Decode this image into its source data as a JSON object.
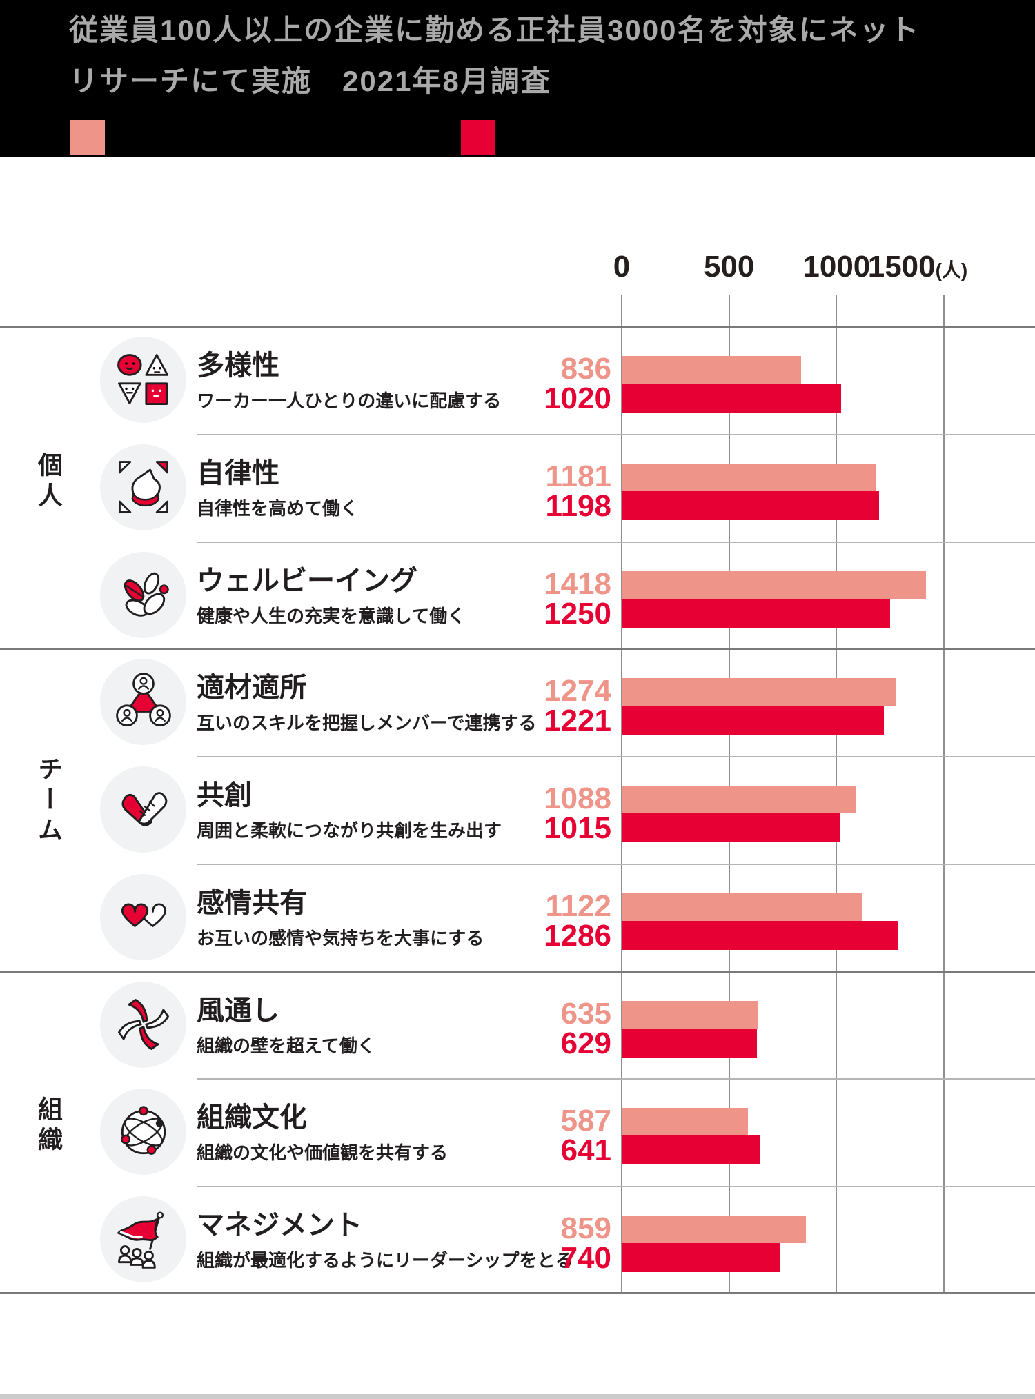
{
  "header": {
    "title_line1": "従業員100人以上の企業に勤める正社員3000名を対象にネット",
    "title_line2": "リサーチにて実施　2021年8月調査",
    "legend": {
      "swatches": [
        {
          "name": "series-a-swatch",
          "color": "#EF9489"
        },
        {
          "name": "series-b-swatch",
          "color": "#E60033"
        }
      ]
    }
  },
  "chart_data": {
    "type": "bar",
    "orientation": "horizontal",
    "unit": "人",
    "axis": {
      "ticks": [
        0,
        500,
        1000,
        1500
      ],
      "tick_suffix": "(人)",
      "xlim": [
        0,
        1500
      ],
      "grid": true
    },
    "series_colors": {
      "series_a": "#EF9489",
      "series_b": "#E60033"
    },
    "groups": [
      {
        "label": "個人",
        "rows": [
          {
            "icon": "diversity-icon",
            "title": "多様性",
            "subtitle": "ワーカー一人ひとりの違いに配慮する",
            "values": [
              836,
              1020
            ]
          },
          {
            "icon": "autonomy-icon",
            "title": "自律性",
            "subtitle": "自律性を高めて働く",
            "values": [
              1181,
              1198
            ]
          },
          {
            "icon": "wellbeing-icon",
            "title": "ウェルビーイング",
            "subtitle": "健康や人生の充実を意識して働く",
            "values": [
              1418,
              1250
            ]
          }
        ]
      },
      {
        "label": "チーム",
        "rows": [
          {
            "icon": "right-person-right-place-icon",
            "title": "適材適所",
            "subtitle": "互いのスキルを把握しメンバーで連携する",
            "values": [
              1274,
              1221
            ]
          },
          {
            "icon": "co-creation-icon",
            "title": "共創",
            "subtitle": "周囲と柔軟につながり共創を生み出す",
            "values": [
              1088,
              1015
            ]
          },
          {
            "icon": "emotion-sharing-icon",
            "title": "感情共有",
            "subtitle": "お互いの感情や気持ちを大事にする",
            "values": [
              1122,
              1286
            ]
          }
        ]
      },
      {
        "label": "組織",
        "rows": [
          {
            "icon": "openness-icon",
            "title": "風通し",
            "subtitle": "組織の壁を超えて働く",
            "values": [
              635,
              629
            ]
          },
          {
            "icon": "culture-icon",
            "title": "組織文化",
            "subtitle": "組織の文化や価値観を共有する",
            "values": [
              587,
              641
            ]
          },
          {
            "icon": "management-icon",
            "title": "マネジメント",
            "subtitle": "組織が最適化するようにリーダーシップをとる",
            "values": [
              859,
              740
            ]
          }
        ]
      }
    ]
  }
}
